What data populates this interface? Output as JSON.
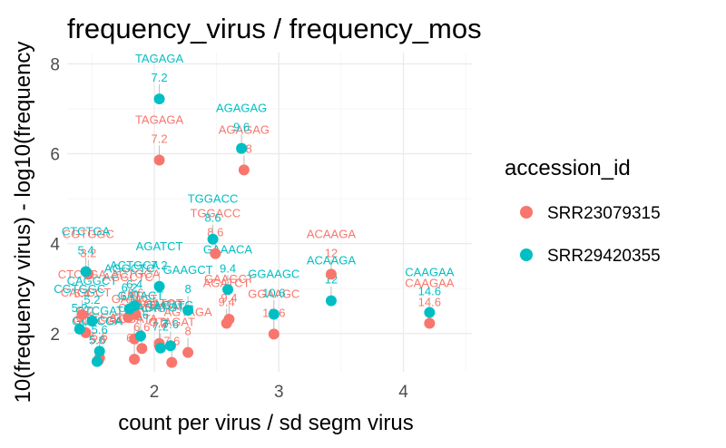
{
  "chart_data": {
    "type": "scatter",
    "title": "frequency_virus / frequency_mos",
    "xlabel": "count per virus / sd segm virus",
    "ylabel": "10(frequency virus) - log10(frequency",
    "xlim": [
      1.3,
      4.55
    ],
    "ylim": [
      1.15,
      8.25
    ],
    "x_ticks": [
      2,
      3,
      4
    ],
    "y_ticks": [
      2,
      4,
      6,
      8
    ],
    "grid": true,
    "legend": {
      "title": "accession_id",
      "position": "right"
    },
    "series": [
      {
        "name": "SRR23079315",
        "color": "#F8766D",
        "points": [
          {
            "x": 2.04,
            "y": 5.86,
            "label": "TAGAGA",
            "value": "7.2"
          },
          {
            "x": 2.72,
            "y": 5.64,
            "label": "AGAGAG",
            "value": "9.8"
          },
          {
            "x": 2.49,
            "y": 3.78,
            "label": "TGGACC",
            "value": "8.6"
          },
          {
            "x": 3.42,
            "y": 3.32,
            "label": "ACAAGA",
            "value": "12"
          },
          {
            "x": 4.21,
            "y": 2.23,
            "label": "CAAGAA",
            "value": "14.6"
          },
          {
            "x": 1.42,
            "y": 2.42,
            "label": "CTCTGA",
            "value": "5.4"
          },
          {
            "x": 1.47,
            "y": 3.32,
            "label": "CGTGGC",
            "value": "3.2"
          },
          {
            "x": 2.58,
            "y": 2.23,
            "label": "AGATCT",
            "value": "9.4"
          },
          {
            "x": 2.6,
            "y": 2.32,
            "label": "GAAGCT",
            "value": "9.4"
          },
          {
            "x": 2.96,
            "y": 1.99,
            "label": "GGAAGC",
            "value": "10.6"
          },
          {
            "x": 1.85,
            "y": 2.43,
            "label": "ACTGCA",
            "value": "6.6"
          },
          {
            "x": 2.04,
            "y": 1.78,
            "label": "AGATGT",
            "value": "7.2"
          },
          {
            "x": 2.04,
            "y": 1.74,
            "label": "TAGATG",
            "value": "7.2"
          },
          {
            "x": 2.14,
            "y": 1.36,
            "label": "GTAGAT",
            "value": "7.6"
          },
          {
            "x": 2.27,
            "y": 1.58,
            "label": "AGTAGA",
            "value": "8"
          },
          {
            "x": 1.84,
            "y": 1.88,
            "label": "GATACT",
            "value": "6.4"
          },
          {
            "x": 1.9,
            "y": 1.67,
            "label": "CGATAG",
            "value": "6.6"
          },
          {
            "x": 1.84,
            "y": 1.43,
            "label": "TCGATA",
            "value": "6.4"
          },
          {
            "x": 1.56,
            "y": 1.46,
            "label": "CTCGAT",
            "value": "5.6"
          },
          {
            "x": 1.55,
            "y": 1.4,
            "label": "GCTCGA",
            "value": "5.6"
          },
          {
            "x": 1.79,
            "y": 2.36,
            "label": "AGGCTC",
            "value": "6.2"
          },
          {
            "x": 1.45,
            "y": 2.02,
            "label": "CAGGCT",
            "value": "5.2"
          }
        ]
      },
      {
        "name": "SRR29420355",
        "color": "#00BFC4",
        "points": [
          {
            "x": 2.04,
            "y": 7.22,
            "label": "TAGAGA",
            "value": "7.2"
          },
          {
            "x": 2.7,
            "y": 6.12,
            "label": "AGAGAG",
            "value": "9.6"
          },
          {
            "x": 2.47,
            "y": 4.1,
            "label": "TGGACC",
            "value": "8.6"
          },
          {
            "x": 3.42,
            "y": 2.73,
            "label": "ACAAGA",
            "value": "12"
          },
          {
            "x": 4.21,
            "y": 2.47,
            "label": "CAAGAA",
            "value": "14.6"
          },
          {
            "x": 1.45,
            "y": 3.38,
            "label": "CTCTGA",
            "value": "5.4"
          },
          {
            "x": 1.4,
            "y": 2.1,
            "label": "CGTGGC",
            "value": "5.2"
          },
          {
            "x": 2.04,
            "y": 3.05,
            "label": "AGATCT",
            "value": "7.2"
          },
          {
            "x": 2.59,
            "y": 2.98,
            "label": "GAAACA",
            "value": "9.4"
          },
          {
            "x": 2.96,
            "y": 2.43,
            "label": "GGAAGC",
            "value": "10.6"
          },
          {
            "x": 2.27,
            "y": 2.52,
            "label": "GAAGCT",
            "value": "8"
          },
          {
            "x": 1.84,
            "y": 2.62,
            "label": "ACTGCA",
            "value": "6.4"
          },
          {
            "x": 2.05,
            "y": 1.68,
            "label": "AGATGT",
            "value": "7.2"
          },
          {
            "x": 2.13,
            "y": 1.73,
            "label": "TAGATG",
            "value": "7.6"
          },
          {
            "x": 1.89,
            "y": 1.95,
            "label": "GATACT",
            "value": "6.6"
          },
          {
            "x": 1.56,
            "y": 1.61,
            "label": "CTCGAT",
            "value": "5.6"
          },
          {
            "x": 1.54,
            "y": 1.38,
            "label": "GCTCGA",
            "value": "5.6"
          },
          {
            "x": 1.8,
            "y": 2.55,
            "label": "AGGCTC",
            "value": "6.2"
          },
          {
            "x": 1.5,
            "y": 2.28,
            "label": "CAGGCT",
            "value": "5.2"
          }
        ]
      }
    ]
  }
}
